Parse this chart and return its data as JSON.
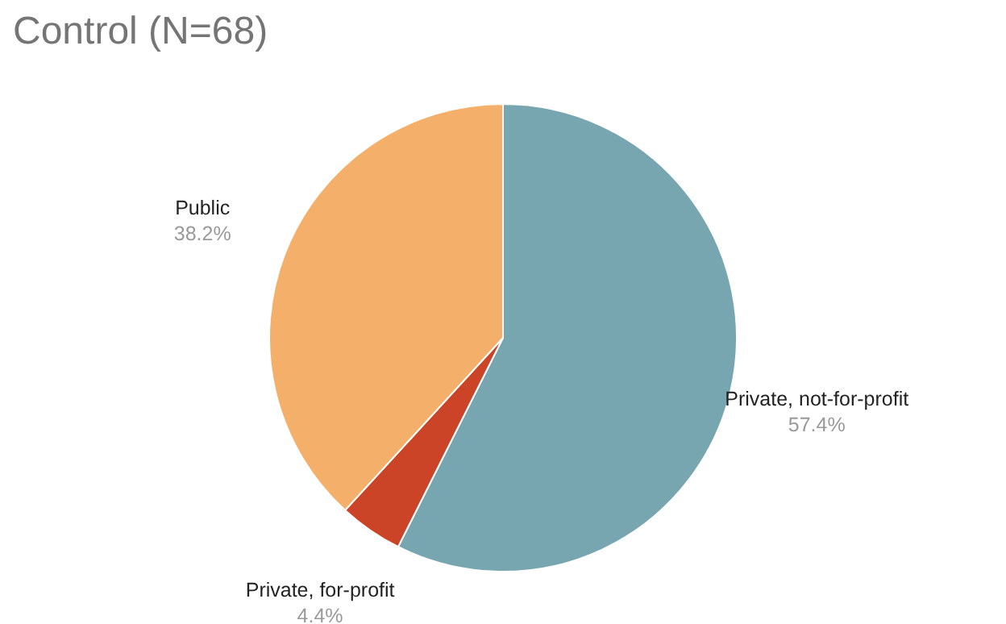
{
  "chart_data": {
    "type": "pie",
    "title": "Control (N=68)",
    "categories": [
      "Private, not-for-profit",
      "Private, for-profit",
      "Public"
    ],
    "values": [
      57.4,
      4.4,
      38.2
    ],
    "colors": [
      "#78a6b0",
      "#cc4428",
      "#f4b06a"
    ],
    "value_labels": [
      "57.4%",
      "4.4%",
      "38.2%"
    ],
    "legend": false
  }
}
